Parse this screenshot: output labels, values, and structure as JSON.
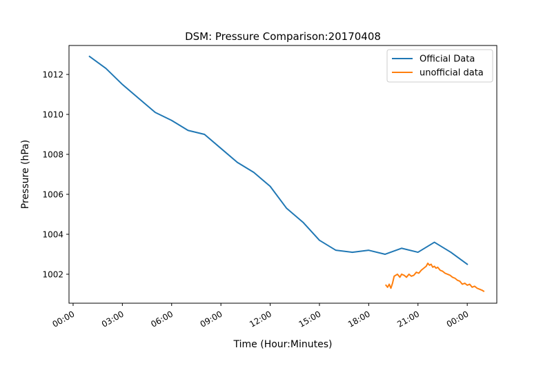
{
  "chart_data": {
    "type": "line",
    "title": "DSM: Pressure Comparison:20170408",
    "xlabel": "Time (Hour:Minutes)",
    "ylabel": "Pressure (hPa)",
    "xlim": [
      -0.25,
      25.8
    ],
    "ylim": [
      1000.55,
      1013.45
    ],
    "x_ticks": [
      {
        "value": 0,
        "label": "00:00"
      },
      {
        "value": 3,
        "label": "03:00"
      },
      {
        "value": 6,
        "label": "06:00"
      },
      {
        "value": 9,
        "label": "09:00"
      },
      {
        "value": 12,
        "label": "12:00"
      },
      {
        "value": 15,
        "label": "15:00"
      },
      {
        "value": 18,
        "label": "18:00"
      },
      {
        "value": 21,
        "label": "21:00"
      },
      {
        "value": 24,
        "label": "00:00"
      }
    ],
    "y_ticks": [
      {
        "value": 1002,
        "label": "1002"
      },
      {
        "value": 1004,
        "label": "1004"
      },
      {
        "value": 1006,
        "label": "1006"
      },
      {
        "value": 1008,
        "label": "1008"
      },
      {
        "value": 1010,
        "label": "1010"
      },
      {
        "value": 1012,
        "label": "1012"
      }
    ],
    "grid": false,
    "legend_position": "top-right",
    "series": [
      {
        "name": "Official Data",
        "color": "#1f77b4",
        "x": [
          1,
          2,
          3,
          4,
          5,
          6,
          7,
          8,
          9,
          10,
          11,
          12,
          13,
          14,
          15,
          16,
          17,
          18,
          19,
          20,
          21,
          22,
          23,
          24
        ],
        "y": [
          1012.9,
          1012.3,
          1011.5,
          1010.8,
          1010.1,
          1009.7,
          1009.2,
          1009.0,
          1008.3,
          1007.6,
          1007.1,
          1006.4,
          1005.3,
          1004.6,
          1003.7,
          1003.2,
          1003.1,
          1003.2,
          1003.0,
          1003.3,
          1003.1,
          1003.6,
          1003.1,
          1002.5
        ]
      },
      {
        "name": "unofficial data",
        "color": "#ff7f0e",
        "x": [
          19.05,
          19.15,
          19.25,
          19.35,
          19.45,
          19.55,
          19.65,
          19.75,
          19.9,
          20.0,
          20.15,
          20.3,
          20.45,
          20.6,
          20.75,
          20.9,
          21.05,
          21.2,
          21.35,
          21.5,
          21.6,
          21.7,
          21.8,
          21.9,
          22.0,
          22.1,
          22.2,
          22.35,
          22.5,
          22.65,
          22.8,
          22.95,
          23.1,
          23.25,
          23.4,
          23.55,
          23.7,
          23.85,
          24.0,
          24.15,
          24.3,
          24.45,
          24.6,
          24.75,
          24.9,
          25.0
        ],
        "y": [
          1001.45,
          1001.35,
          1001.5,
          1001.3,
          1001.55,
          1001.9,
          1001.95,
          1002.0,
          1001.85,
          1002.0,
          1001.95,
          1001.85,
          1002.0,
          1001.9,
          1001.95,
          1002.1,
          1002.05,
          1002.2,
          1002.3,
          1002.4,
          1002.55,
          1002.45,
          1002.5,
          1002.35,
          1002.4,
          1002.3,
          1002.35,
          1002.2,
          1002.15,
          1002.05,
          1002.0,
          1001.95,
          1001.85,
          1001.8,
          1001.7,
          1001.65,
          1001.5,
          1001.55,
          1001.45,
          1001.5,
          1001.35,
          1001.4,
          1001.3,
          1001.25,
          1001.2,
          1001.15
        ]
      }
    ]
  }
}
